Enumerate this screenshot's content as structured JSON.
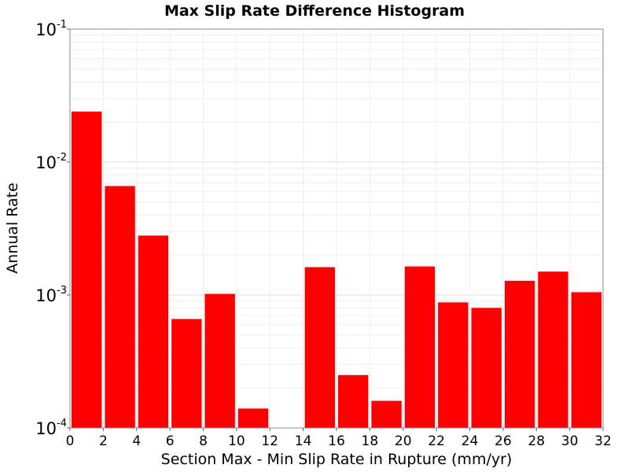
{
  "chart_data": {
    "type": "bar",
    "title": "Max Slip Rate Difference Histogram",
    "xlabel": "Section Max - Min Slip Rate in Rupture (mm/yr)",
    "ylabel": "Annual Rate",
    "xlim": [
      0,
      32
    ],
    "ylim": [
      0.0001,
      0.1
    ],
    "yscale": "log",
    "bin_width": 2,
    "x_ticks": [
      "0",
      "2",
      "4",
      "6",
      "8",
      "10",
      "12",
      "14",
      "16",
      "18",
      "20",
      "22",
      "24",
      "26",
      "28",
      "30",
      "32"
    ],
    "y_ticks": [
      {
        "base": "10",
        "exp": "-4",
        "value": 0.0001
      },
      {
        "base": "10",
        "exp": "-3",
        "value": 0.001
      },
      {
        "base": "10",
        "exp": "-2",
        "value": 0.01
      },
      {
        "base": "10",
        "exp": "-1",
        "value": 0.1
      }
    ],
    "grid": true,
    "color": "#ff0000",
    "bins": [
      {
        "x": 1,
        "value": 0.024
      },
      {
        "x": 3,
        "value": 0.0066
      },
      {
        "x": 5,
        "value": 0.0028
      },
      {
        "x": 7,
        "value": 0.00066
      },
      {
        "x": 9,
        "value": 0.00102
      },
      {
        "x": 11,
        "value": 0.00014
      },
      {
        "x": 13,
        "value": null
      },
      {
        "x": 15,
        "value": 0.00162
      },
      {
        "x": 17,
        "value": 0.00025
      },
      {
        "x": 19,
        "value": 0.00016
      },
      {
        "x": 21,
        "value": 0.00164
      },
      {
        "x": 23,
        "value": 0.00088
      },
      {
        "x": 25,
        "value": 0.0008
      },
      {
        "x": 27,
        "value": 0.00128
      },
      {
        "x": 29,
        "value": 0.0015
      },
      {
        "x": 31,
        "value": 0.00105
      }
    ]
  }
}
